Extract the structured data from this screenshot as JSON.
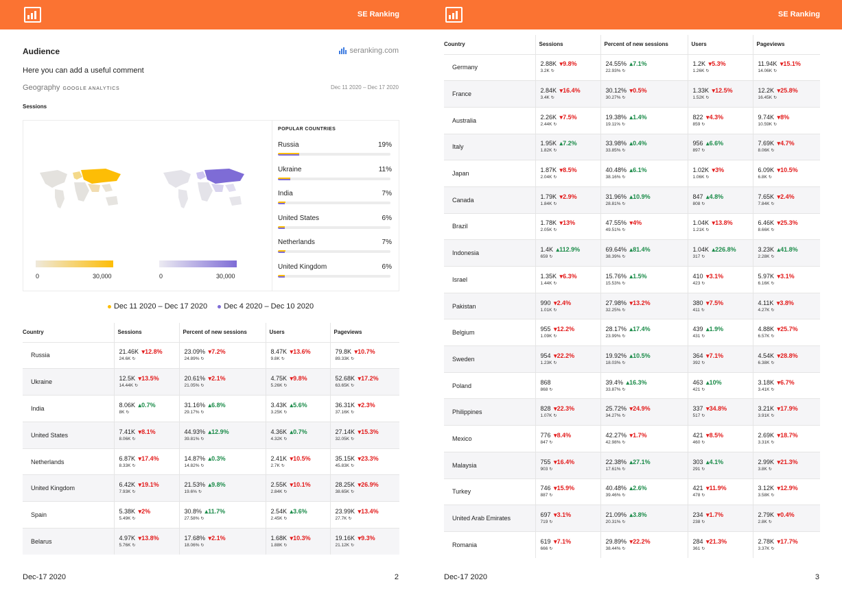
{
  "brand": "SE Ranking",
  "page2": {
    "title": "Audience",
    "site": "seranking.com",
    "comment": "Here you can add a useful comment",
    "geo_label": "Geography",
    "ga_label": "GOOGLE ANALYTICS",
    "date_range": "Dec 11 2020 – Dec 17 2020",
    "sessions_label": "Sessions",
    "scale_min": "0",
    "scale_max": "30,000",
    "popular_title": "POPULAR COUNTRIES",
    "popular": [
      {
        "name": "Russia",
        "pct": "19%",
        "cur": 0.19,
        "prev": 0.19
      },
      {
        "name": "Ukraine",
        "pct": "11%",
        "cur": 0.11,
        "prev": 0.11
      },
      {
        "name": "India",
        "pct": "7%",
        "cur": 0.07,
        "prev": 0.06
      },
      {
        "name": "United States",
        "pct": "6%",
        "cur": 0.06,
        "prev": 0.06
      },
      {
        "name": "Netherlands",
        "pct": "7%",
        "cur": 0.07,
        "prev": 0.06
      },
      {
        "name": "United Kingdom",
        "pct": "6%",
        "cur": 0.06,
        "prev": 0.06
      }
    ],
    "legend": [
      "Dec 11 2020 – Dec 17 2020",
      "Dec 4 2020 – Dec 10 2020"
    ],
    "colors": {
      "current": "#fdbd06",
      "previous": "#7e6cd6",
      "header": "#fb7332",
      "down": "#e31c1c",
      "up": "#1c8c4a"
    },
    "footer_date": "Dec-17 2020",
    "page_number": "2"
  },
  "page3": {
    "footer_date": "Dec-17 2020",
    "page_number": "3"
  },
  "columns": [
    "Country",
    "Sessions",
    "Percent of new sessions",
    "Users",
    "Pageviews"
  ],
  "rows_page2": [
    {
      "country": "Russia",
      "cells": [
        [
          "21.46K",
          "down",
          "12.8%",
          "24.6K"
        ],
        [
          "23.09%",
          "down",
          "7.2%",
          "24.89%"
        ],
        [
          "8.47K",
          "down",
          "13.6%",
          "9.8K"
        ],
        [
          "79.8K",
          "down",
          "10.7%",
          "89.33K"
        ]
      ]
    },
    {
      "country": "Ukraine",
      "cells": [
        [
          "12.5K",
          "down",
          "13.5%",
          "14.44K"
        ],
        [
          "20.61%",
          "down",
          "2.1%",
          "21.05%"
        ],
        [
          "4.75K",
          "down",
          "9.8%",
          "5.26K"
        ],
        [
          "52.68K",
          "down",
          "17.2%",
          "63.65K"
        ]
      ]
    },
    {
      "country": "India",
      "cells": [
        [
          "8.06K",
          "up",
          "0.7%",
          "8K"
        ],
        [
          "31.16%",
          "up",
          "6.8%",
          "29.17%"
        ],
        [
          "3.43K",
          "up",
          "5.6%",
          "3.25K"
        ],
        [
          "36.31K",
          "down",
          "2.3%",
          "37.16K"
        ]
      ]
    },
    {
      "country": "United States",
      "cells": [
        [
          "7.41K",
          "down",
          "8.1%",
          "8.06K"
        ],
        [
          "44.93%",
          "up",
          "12.9%",
          "39.81%"
        ],
        [
          "4.36K",
          "up",
          "0.7%",
          "4.32K"
        ],
        [
          "27.14K",
          "down",
          "15.3%",
          "32.05K"
        ]
      ]
    },
    {
      "country": "Netherlands",
      "cells": [
        [
          "6.87K",
          "down",
          "17.4%",
          "8.33K"
        ],
        [
          "14.87%",
          "up",
          "0.3%",
          "14.82%"
        ],
        [
          "2.41K",
          "down",
          "10.5%",
          "2.7K"
        ],
        [
          "35.15K",
          "down",
          "23.3%",
          "45.83K"
        ]
      ]
    },
    {
      "country": "United Kingdom",
      "cells": [
        [
          "6.42K",
          "down",
          "19.1%",
          "7.93K"
        ],
        [
          "21.53%",
          "up",
          "9.8%",
          "19.6%"
        ],
        [
          "2.55K",
          "down",
          "10.1%",
          "2.84K"
        ],
        [
          "28.25K",
          "down",
          "26.9%",
          "38.65K"
        ]
      ]
    },
    {
      "country": "Spain",
      "cells": [
        [
          "5.38K",
          "down",
          "2%",
          "5.49K"
        ],
        [
          "30.8%",
          "up",
          "11.7%",
          "27.58%"
        ],
        [
          "2.54K",
          "up",
          "3.6%",
          "2.45K"
        ],
        [
          "23.99K",
          "down",
          "13.4%",
          "27.7K"
        ]
      ]
    },
    {
      "country": "Belarus",
      "cells": [
        [
          "4.97K",
          "down",
          "13.8%",
          "5.76K"
        ],
        [
          "17.68%",
          "down",
          "2.1%",
          "18.06%"
        ],
        [
          "1.68K",
          "down",
          "10.3%",
          "1.88K"
        ],
        [
          "19.16K",
          "down",
          "9.3%",
          "21.12K"
        ]
      ]
    }
  ],
  "rows_page3": [
    {
      "country": "Germany",
      "cells": [
        [
          "2.88K",
          "down",
          "9.8%",
          "3.2K"
        ],
        [
          "24.55%",
          "up",
          "7.1%",
          "22.93%"
        ],
        [
          "1.2K",
          "down",
          "5.3%",
          "1.26K"
        ],
        [
          "11.94K",
          "down",
          "15.1%",
          "14.06K"
        ]
      ]
    },
    {
      "country": "France",
      "cells": [
        [
          "2.84K",
          "down",
          "16.4%",
          "3.4K"
        ],
        [
          "30.12%",
          "down",
          "0.5%",
          "30.27%"
        ],
        [
          "1.33K",
          "down",
          "12.5%",
          "1.52K"
        ],
        [
          "12.2K",
          "down",
          "25.8%",
          "16.45K"
        ]
      ]
    },
    {
      "country": "Australia",
      "cells": [
        [
          "2.26K",
          "down",
          "7.5%",
          "2.44K"
        ],
        [
          "19.38%",
          "up",
          "1.4%",
          "19.11%"
        ],
        [
          "822",
          "down",
          "4.3%",
          "859"
        ],
        [
          "9.74K",
          "down",
          "8%",
          "10.59K"
        ]
      ]
    },
    {
      "country": "Italy",
      "cells": [
        [
          "1.95K",
          "up",
          "7.2%",
          "1.82K"
        ],
        [
          "33.98%",
          "up",
          "0.4%",
          "33.85%"
        ],
        [
          "956",
          "up",
          "6.6%",
          "897"
        ],
        [
          "7.69K",
          "down",
          "4.7%",
          "8.06K"
        ]
      ]
    },
    {
      "country": "Japan",
      "cells": [
        [
          "1.87K",
          "down",
          "8.5%",
          "2.04K"
        ],
        [
          "40.48%",
          "up",
          "6.1%",
          "38.16%"
        ],
        [
          "1.02K",
          "down",
          "3%",
          "1.06K"
        ],
        [
          "6.09K",
          "down",
          "10.5%",
          "6.8K"
        ]
      ]
    },
    {
      "country": "Canada",
      "cells": [
        [
          "1.79K",
          "down",
          "2.9%",
          "1.84K"
        ],
        [
          "31.96%",
          "up",
          "10.9%",
          "28.81%"
        ],
        [
          "847",
          "up",
          "4.8%",
          "808"
        ],
        [
          "7.65K",
          "down",
          "2.4%",
          "7.84K"
        ]
      ]
    },
    {
      "country": "Brazil",
      "cells": [
        [
          "1.78K",
          "down",
          "13%",
          "2.05K"
        ],
        [
          "47.55%",
          "down",
          "4%",
          "49.51%"
        ],
        [
          "1.04K",
          "down",
          "13.8%",
          "1.21K"
        ],
        [
          "6.46K",
          "down",
          "25.3%",
          "8.66K"
        ]
      ]
    },
    {
      "country": "Indonesia",
      "cells": [
        [
          "1.4K",
          "up",
          "112.9%",
          "659"
        ],
        [
          "69.64%",
          "up",
          "81.4%",
          "38.39%"
        ],
        [
          "1.04K",
          "up",
          "226.8%",
          "317"
        ],
        [
          "3.23K",
          "up",
          "41.8%",
          "2.28K"
        ]
      ]
    },
    {
      "country": "Israel",
      "cells": [
        [
          "1.35K",
          "down",
          "6.3%",
          "1.44K"
        ],
        [
          "15.76%",
          "up",
          "1.5%",
          "15.53%"
        ],
        [
          "410",
          "down",
          "3.1%",
          "423"
        ],
        [
          "5.97K",
          "down",
          "3.1%",
          "6.16K"
        ]
      ]
    },
    {
      "country": "Pakistan",
      "cells": [
        [
          "990",
          "down",
          "2.4%",
          "1.01K"
        ],
        [
          "27.98%",
          "down",
          "13.2%",
          "32.25%"
        ],
        [
          "380",
          "down",
          "7.5%",
          "411"
        ],
        [
          "4.11K",
          "down",
          "3.8%",
          "4.27K"
        ]
      ]
    },
    {
      "country": "Belgium",
      "cells": [
        [
          "955",
          "down",
          "12.2%",
          "1.09K"
        ],
        [
          "28.17%",
          "up",
          "17.4%",
          "23.99%"
        ],
        [
          "439",
          "up",
          "1.9%",
          "431"
        ],
        [
          "4.88K",
          "down",
          "25.7%",
          "6.57K"
        ]
      ]
    },
    {
      "country": "Sweden",
      "cells": [
        [
          "954",
          "down",
          "22.2%",
          "1.23K"
        ],
        [
          "19.92%",
          "up",
          "10.5%",
          "18.03%"
        ],
        [
          "364",
          "down",
          "7.1%",
          "392"
        ],
        [
          "4.54K",
          "down",
          "28.8%",
          "6.38K"
        ]
      ]
    },
    {
      "country": "Poland",
      "cells": [
        [
          "868",
          "",
          "",
          "868"
        ],
        [
          "39.4%",
          "up",
          "16.3%",
          "33.87%"
        ],
        [
          "463",
          "up",
          "10%",
          "421"
        ],
        [
          "3.18K",
          "down",
          "6.7%",
          "3.41K"
        ]
      ]
    },
    {
      "country": "Philippines",
      "cells": [
        [
          "828",
          "down",
          "22.3%",
          "1.07K"
        ],
        [
          "25.72%",
          "down",
          "24.9%",
          "34.27%"
        ],
        [
          "337",
          "down",
          "34.8%",
          "517"
        ],
        [
          "3.21K",
          "down",
          "17.9%",
          "3.91K"
        ]
      ]
    },
    {
      "country": "Mexico",
      "cells": [
        [
          "776",
          "down",
          "8.4%",
          "847"
        ],
        [
          "42.27%",
          "down",
          "1.7%",
          "42.98%"
        ],
        [
          "421",
          "down",
          "8.5%",
          "460"
        ],
        [
          "2.69K",
          "down",
          "18.7%",
          "3.31K"
        ]
      ]
    },
    {
      "country": "Malaysia",
      "cells": [
        [
          "755",
          "down",
          "16.4%",
          "903"
        ],
        [
          "22.38%",
          "up",
          "27.1%",
          "17.61%"
        ],
        [
          "303",
          "up",
          "4.1%",
          "291"
        ],
        [
          "2.99K",
          "down",
          "21.3%",
          "3.8K"
        ]
      ]
    },
    {
      "country": "Turkey",
      "cells": [
        [
          "746",
          "down",
          "15.9%",
          "887"
        ],
        [
          "40.48%",
          "up",
          "2.6%",
          "39.46%"
        ],
        [
          "421",
          "down",
          "11.9%",
          "478"
        ],
        [
          "3.12K",
          "down",
          "12.9%",
          "3.58K"
        ]
      ]
    },
    {
      "country": "United Arab Emirates",
      "cells": [
        [
          "697",
          "down",
          "3.1%",
          "719"
        ],
        [
          "21.09%",
          "up",
          "3.8%",
          "20.31%"
        ],
        [
          "234",
          "down",
          "1.7%",
          "238"
        ],
        [
          "2.79K",
          "down",
          "0.4%",
          "2.8K"
        ]
      ]
    },
    {
      "country": "Romania",
      "cells": [
        [
          "619",
          "down",
          "7.1%",
          "666"
        ],
        [
          "29.89%",
          "down",
          "22.2%",
          "38.44%"
        ],
        [
          "284",
          "down",
          "21.3%",
          "361"
        ],
        [
          "2.78K",
          "down",
          "17.7%",
          "3.37K"
        ]
      ]
    }
  ]
}
